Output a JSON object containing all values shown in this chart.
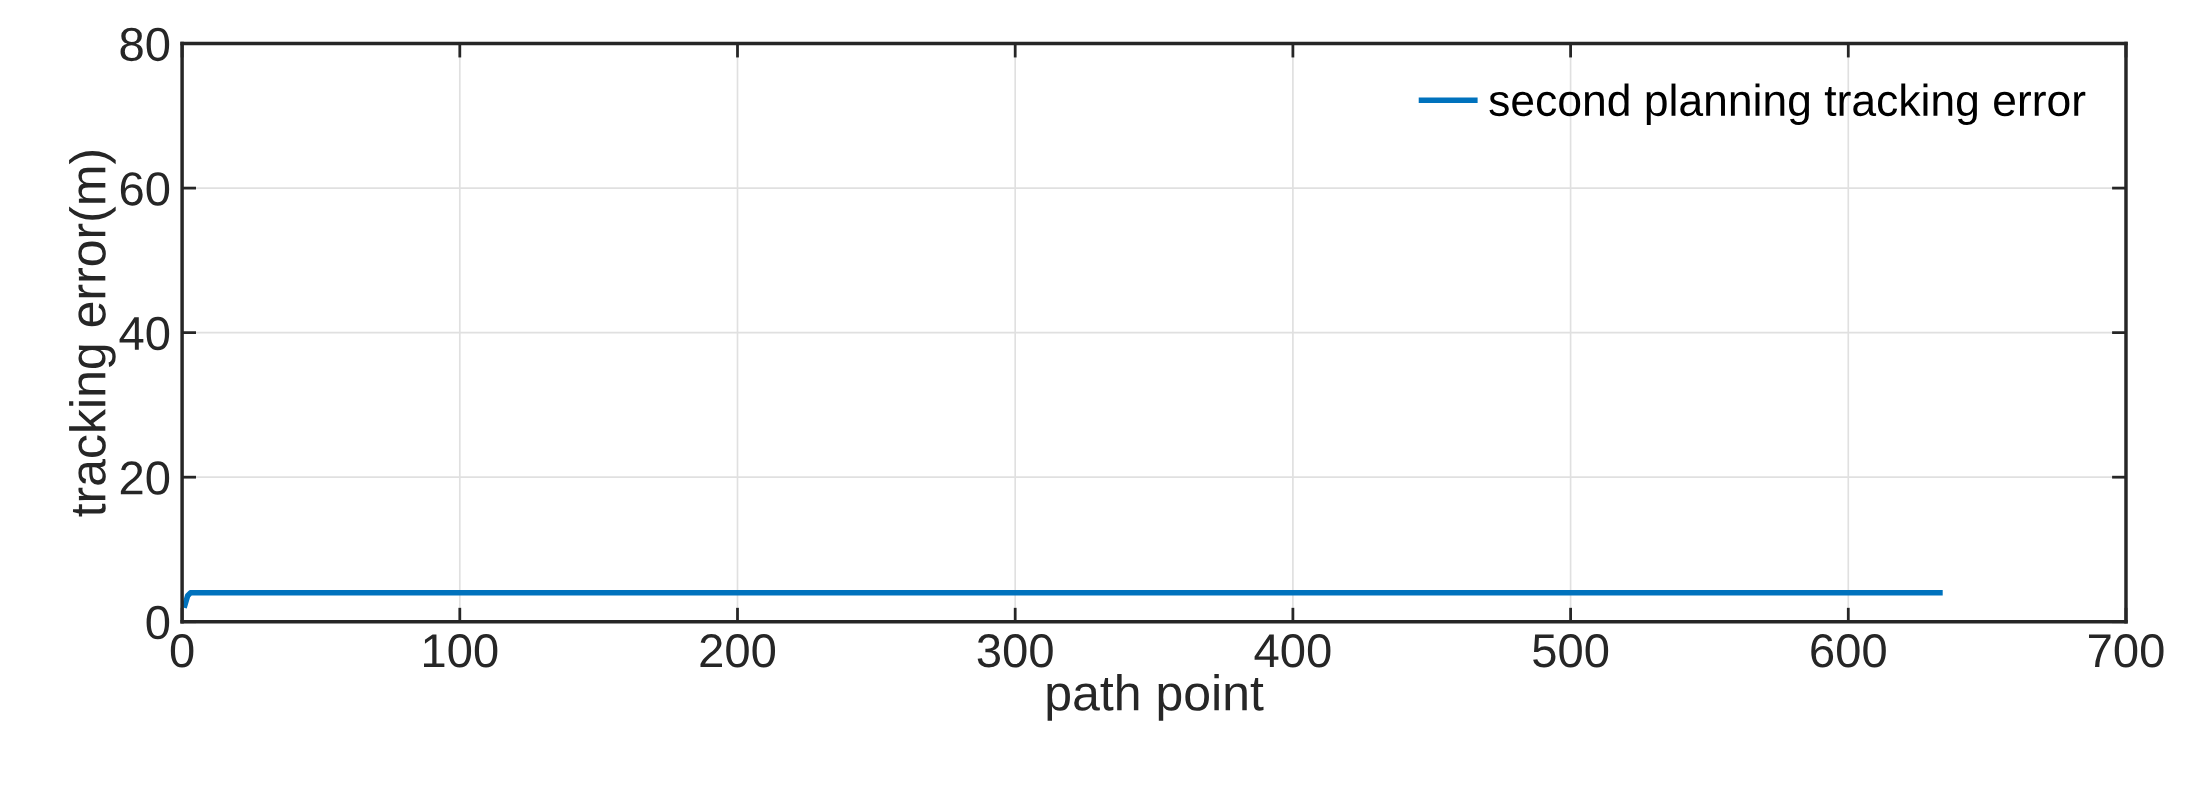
{
  "chart_data": {
    "type": "line",
    "xlabel": "path point",
    "ylabel": "tracking error(m)",
    "series": [
      {
        "name": "second planning tracking error",
        "color": "#0072bd",
        "x": [
          1,
          2,
          3,
          633
        ],
        "values": [
          2.3,
          3.6,
          4,
          4
        ]
      }
    ],
    "xlim": [
      0,
      700
    ],
    "ylim": [
      0,
      80
    ],
    "xticks": [
      0,
      100,
      200,
      300,
      400,
      500,
      600,
      700
    ],
    "yticks": [
      0,
      20,
      40,
      60,
      80
    ],
    "grid": true,
    "legend": "top right",
    "line_style": "solid",
    "marker": "none"
  }
}
